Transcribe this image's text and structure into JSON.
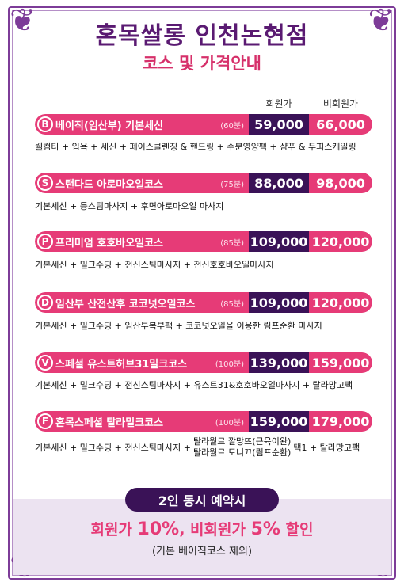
{
  "header": {
    "title": "혼목쌀롱 인천논현점",
    "subtitle": "코스 및 가격안내"
  },
  "columns": {
    "member": "회원가",
    "nonmember": "비회원가"
  },
  "courses": [
    {
      "letter": "B",
      "name": "베이직(임산부) 기본세신",
      "minutes": "(60분)",
      "member_price": "59,000",
      "nonmember_price": "66,000",
      "desc": "웰컴티 + 입욕 + 세신 + 페이스클렌징 & 핸드링 + 수분영양팩 + 샴푸 & 두피스케일링"
    },
    {
      "letter": "S",
      "name": "스탠다드 아로마오일코스",
      "minutes": "(75분)",
      "member_price": "88,000",
      "nonmember_price": "98,000",
      "desc": "기본세신 + 등스팀마사지 + 후면아로마오일 마사지"
    },
    {
      "letter": "P",
      "name": "프리미엄 호호바오일코스",
      "minutes": "(85분)",
      "member_price": "109,000",
      "nonmember_price": "120,000",
      "desc": "기본세신 + 밀크수딩 + 전신스팀마사지 + 전신호호바오일마사지"
    },
    {
      "letter": "D",
      "name": "임산부 산전산후 코코넛오일코스",
      "minutes": "(85분)",
      "member_price": "109,000",
      "nonmember_price": "120,000",
      "desc": "기본세신 + 밀크수딩 + 임산부복부팩 + 코코넛오일을 이용한 림프순환 마사지"
    },
    {
      "letter": "V",
      "name": "스페셜 유스트허브31밀크코스",
      "minutes": "(100분)",
      "member_price": "139,000",
      "nonmember_price": "159,000",
      "desc": "기본세신 + 밀크수딩 + 전신스팀마사지 + 유스트31&호호바오일마사지 + 탈라망고팩"
    },
    {
      "letter": "F",
      "name": "혼목스페셜 탈라밀크코스",
      "minutes": "(100분)",
      "member_price": "159,000",
      "nonmember_price": "179,000",
      "desc_prefix": "기본세신 + 밀크수딩 + 전신스팀마사지 +",
      "desc_line1": "탈라월르 깔망뜨(근육이완)",
      "desc_line2": "탈라월르 토니끄(림프순환)",
      "desc_suffix": "택1 + 탈라망고팩"
    }
  ],
  "promo": {
    "badge": "2인 동시 예약시",
    "line_part1": "회원가 ",
    "line_pct1": "10%",
    "line_part2": ", 비회원가 ",
    "line_pct2": "5%",
    "line_part3": " 할인",
    "note": "(기본 베이직코스 제외)"
  },
  "colors": {
    "pink": "#e63b77",
    "purple_dark": "#3a1257",
    "title_purple": "#5a1a72",
    "panel": "#ece3f1"
  }
}
